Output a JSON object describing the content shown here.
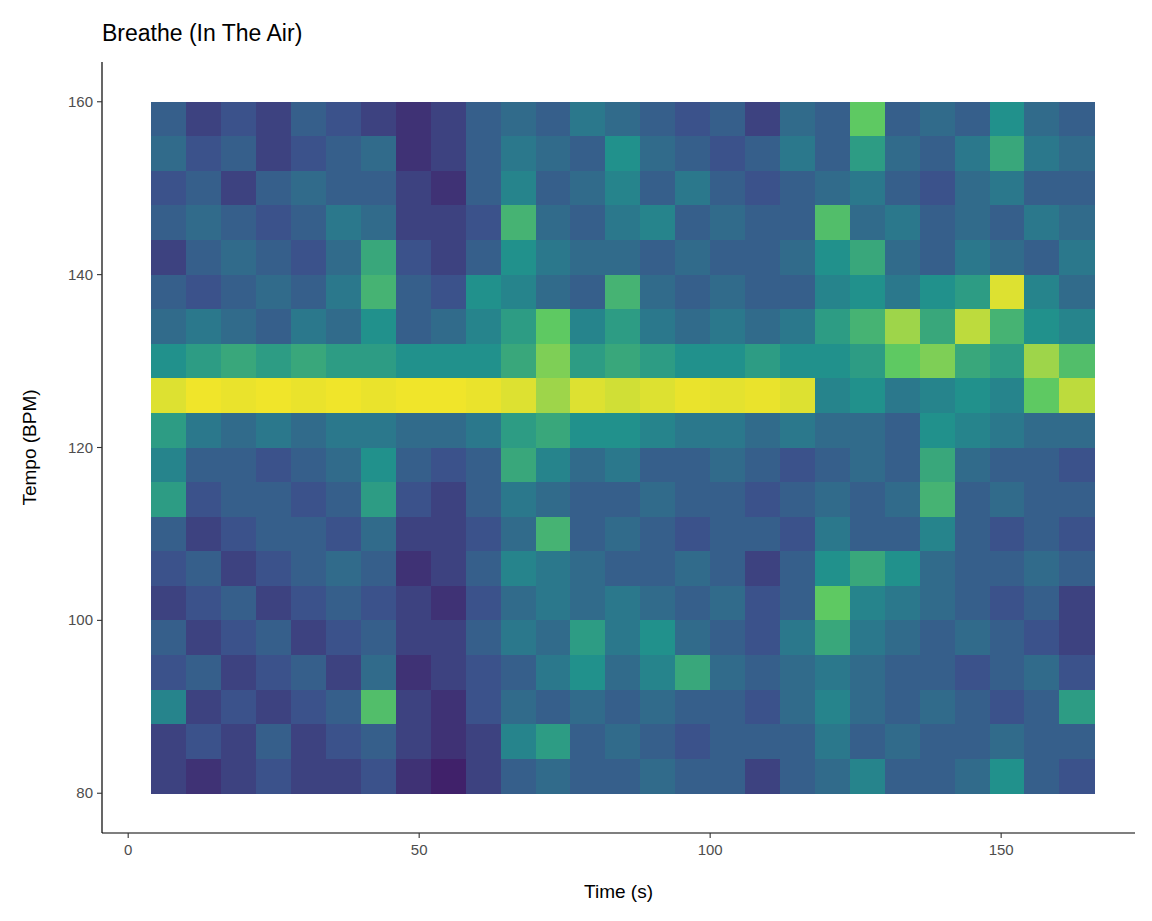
{
  "chart_data": {
    "type": "heatmap",
    "title": "Breathe (In The Air)",
    "x_label": "Time (s)",
    "y_label": "Tempo (BPM)",
    "xlim": [
      -4.5,
      173
    ],
    "ylim": [
      75.4,
      164.6
    ],
    "xticks": [
      0,
      50,
      100,
      150
    ],
    "yticks": [
      80,
      100,
      120,
      140,
      160
    ],
    "zlim": [
      0,
      1
    ],
    "x": [
      7,
      13,
      19,
      25,
      31,
      37,
      43,
      49,
      55,
      61,
      67,
      73,
      79,
      85,
      91,
      97,
      103,
      109,
      115,
      121,
      127,
      133,
      139,
      145,
      151,
      157,
      163
    ],
    "y": [
      158,
      154,
      150,
      146,
      142,
      138,
      134,
      130,
      126,
      122,
      118,
      114,
      110,
      106,
      102,
      98,
      94,
      90,
      86,
      82
    ],
    "values": [
      [
        0.3,
        0.2,
        0.25,
        0.2,
        0.3,
        0.25,
        0.2,
        0.15,
        0.2,
        0.3,
        0.35,
        0.3,
        0.4,
        0.35,
        0.3,
        0.25,
        0.3,
        0.2,
        0.35,
        0.3,
        0.75,
        0.3,
        0.35,
        0.3,
        0.5,
        0.35,
        0.3
      ],
      [
        0.35,
        0.25,
        0.3,
        0.2,
        0.25,
        0.3,
        0.35,
        0.15,
        0.2,
        0.3,
        0.4,
        0.35,
        0.3,
        0.5,
        0.35,
        0.3,
        0.25,
        0.3,
        0.4,
        0.3,
        0.55,
        0.35,
        0.3,
        0.4,
        0.6,
        0.4,
        0.35
      ],
      [
        0.25,
        0.3,
        0.2,
        0.3,
        0.35,
        0.3,
        0.3,
        0.2,
        0.15,
        0.3,
        0.45,
        0.3,
        0.35,
        0.45,
        0.3,
        0.4,
        0.3,
        0.25,
        0.3,
        0.35,
        0.4,
        0.3,
        0.25,
        0.35,
        0.4,
        0.3,
        0.3
      ],
      [
        0.3,
        0.35,
        0.3,
        0.25,
        0.3,
        0.4,
        0.35,
        0.2,
        0.2,
        0.25,
        0.65,
        0.35,
        0.3,
        0.4,
        0.45,
        0.3,
        0.35,
        0.3,
        0.3,
        0.7,
        0.35,
        0.4,
        0.3,
        0.35,
        0.3,
        0.4,
        0.35
      ],
      [
        0.2,
        0.3,
        0.35,
        0.3,
        0.25,
        0.35,
        0.6,
        0.25,
        0.2,
        0.3,
        0.5,
        0.4,
        0.35,
        0.35,
        0.3,
        0.35,
        0.3,
        0.3,
        0.35,
        0.5,
        0.6,
        0.35,
        0.3,
        0.4,
        0.35,
        0.3,
        0.4
      ],
      [
        0.3,
        0.25,
        0.3,
        0.35,
        0.3,
        0.4,
        0.65,
        0.3,
        0.25,
        0.5,
        0.45,
        0.35,
        0.3,
        0.65,
        0.35,
        0.3,
        0.35,
        0.3,
        0.3,
        0.45,
        0.5,
        0.4,
        0.5,
        0.55,
        0.95,
        0.45,
        0.35
      ],
      [
        0.35,
        0.4,
        0.35,
        0.3,
        0.4,
        0.35,
        0.5,
        0.3,
        0.35,
        0.45,
        0.55,
        0.75,
        0.45,
        0.55,
        0.4,
        0.35,
        0.4,
        0.35,
        0.4,
        0.55,
        0.65,
        0.85,
        0.6,
        0.9,
        0.65,
        0.5,
        0.45
      ],
      [
        0.5,
        0.55,
        0.6,
        0.55,
        0.6,
        0.55,
        0.55,
        0.5,
        0.5,
        0.5,
        0.6,
        0.8,
        0.55,
        0.6,
        0.55,
        0.5,
        0.5,
        0.55,
        0.5,
        0.5,
        0.55,
        0.75,
        0.8,
        0.6,
        0.55,
        0.85,
        0.7
      ],
      [
        0.95,
        0.98,
        0.97,
        0.98,
        0.97,
        0.98,
        0.97,
        0.98,
        0.98,
        0.97,
        0.95,
        0.85,
        0.95,
        0.93,
        0.95,
        0.97,
        0.96,
        0.97,
        0.95,
        0.45,
        0.5,
        0.4,
        0.45,
        0.5,
        0.45,
        0.75,
        0.9
      ],
      [
        0.55,
        0.4,
        0.35,
        0.4,
        0.35,
        0.4,
        0.4,
        0.35,
        0.35,
        0.4,
        0.55,
        0.6,
        0.5,
        0.5,
        0.45,
        0.4,
        0.4,
        0.35,
        0.4,
        0.35,
        0.35,
        0.3,
        0.5,
        0.45,
        0.4,
        0.35,
        0.35
      ],
      [
        0.45,
        0.3,
        0.3,
        0.25,
        0.3,
        0.35,
        0.5,
        0.3,
        0.25,
        0.3,
        0.6,
        0.45,
        0.35,
        0.4,
        0.3,
        0.3,
        0.35,
        0.3,
        0.25,
        0.3,
        0.35,
        0.3,
        0.6,
        0.35,
        0.3,
        0.3,
        0.25
      ],
      [
        0.55,
        0.25,
        0.3,
        0.3,
        0.25,
        0.3,
        0.55,
        0.25,
        0.2,
        0.3,
        0.4,
        0.35,
        0.3,
        0.3,
        0.35,
        0.3,
        0.3,
        0.25,
        0.3,
        0.35,
        0.3,
        0.35,
        0.65,
        0.3,
        0.35,
        0.3,
        0.3
      ],
      [
        0.3,
        0.2,
        0.25,
        0.3,
        0.3,
        0.25,
        0.35,
        0.2,
        0.2,
        0.25,
        0.35,
        0.65,
        0.3,
        0.35,
        0.3,
        0.25,
        0.3,
        0.3,
        0.25,
        0.4,
        0.3,
        0.3,
        0.45,
        0.3,
        0.25,
        0.3,
        0.25
      ],
      [
        0.25,
        0.3,
        0.2,
        0.25,
        0.3,
        0.35,
        0.3,
        0.15,
        0.2,
        0.3,
        0.45,
        0.4,
        0.35,
        0.3,
        0.3,
        0.35,
        0.3,
        0.2,
        0.3,
        0.5,
        0.6,
        0.5,
        0.35,
        0.3,
        0.3,
        0.35,
        0.3
      ],
      [
        0.2,
        0.25,
        0.3,
        0.2,
        0.25,
        0.3,
        0.25,
        0.2,
        0.15,
        0.25,
        0.35,
        0.4,
        0.35,
        0.4,
        0.35,
        0.3,
        0.35,
        0.25,
        0.3,
        0.75,
        0.45,
        0.4,
        0.35,
        0.3,
        0.25,
        0.3,
        0.2
      ],
      [
        0.3,
        0.2,
        0.25,
        0.3,
        0.2,
        0.25,
        0.3,
        0.2,
        0.2,
        0.3,
        0.4,
        0.35,
        0.55,
        0.4,
        0.5,
        0.35,
        0.3,
        0.25,
        0.4,
        0.6,
        0.4,
        0.35,
        0.3,
        0.35,
        0.3,
        0.25,
        0.2
      ],
      [
        0.25,
        0.3,
        0.2,
        0.25,
        0.3,
        0.2,
        0.35,
        0.15,
        0.2,
        0.25,
        0.3,
        0.4,
        0.5,
        0.35,
        0.45,
        0.6,
        0.35,
        0.3,
        0.35,
        0.4,
        0.35,
        0.3,
        0.3,
        0.25,
        0.3,
        0.35,
        0.25
      ],
      [
        0.45,
        0.2,
        0.25,
        0.2,
        0.25,
        0.3,
        0.7,
        0.2,
        0.15,
        0.25,
        0.35,
        0.3,
        0.35,
        0.3,
        0.35,
        0.3,
        0.3,
        0.25,
        0.35,
        0.45,
        0.35,
        0.3,
        0.35,
        0.3,
        0.25,
        0.3,
        0.55
      ],
      [
        0.2,
        0.25,
        0.2,
        0.3,
        0.2,
        0.25,
        0.3,
        0.2,
        0.15,
        0.2,
        0.45,
        0.55,
        0.3,
        0.35,
        0.3,
        0.25,
        0.3,
        0.3,
        0.3,
        0.4,
        0.3,
        0.35,
        0.3,
        0.3,
        0.35,
        0.3,
        0.3
      ],
      [
        0.2,
        0.15,
        0.2,
        0.25,
        0.2,
        0.2,
        0.25,
        0.15,
        0.1,
        0.2,
        0.3,
        0.35,
        0.3,
        0.3,
        0.35,
        0.3,
        0.3,
        0.2,
        0.3,
        0.35,
        0.45,
        0.3,
        0.3,
        0.35,
        0.5,
        0.3,
        0.25
      ]
    ]
  }
}
